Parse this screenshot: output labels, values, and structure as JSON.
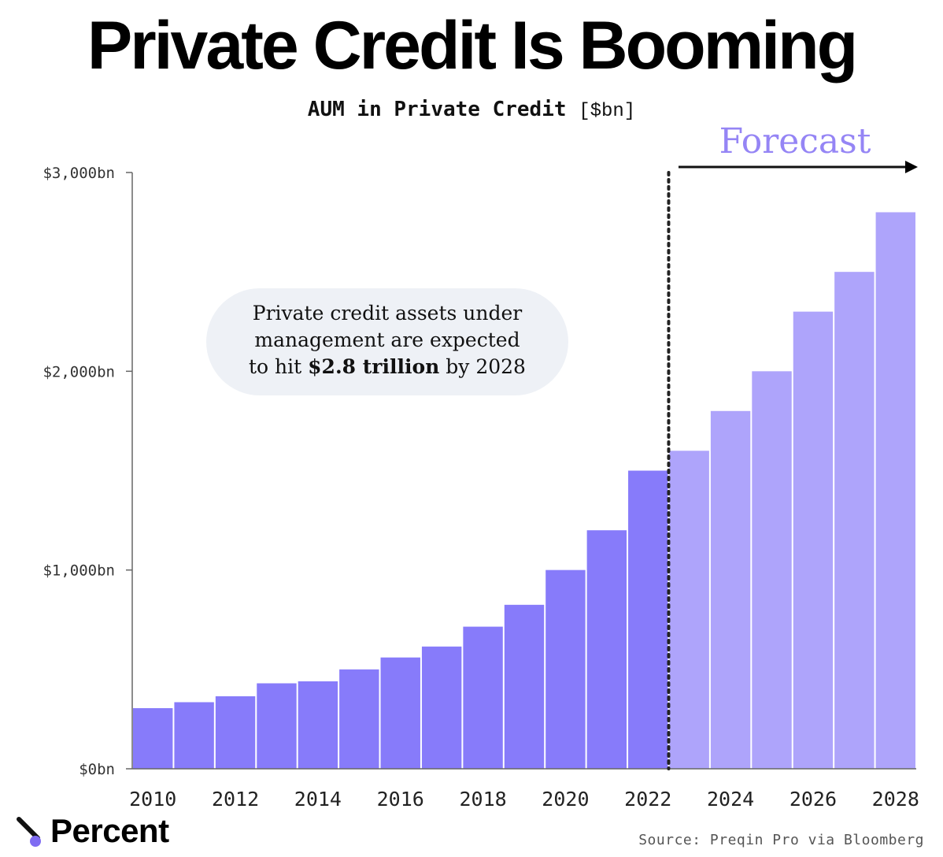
{
  "title": "Private Credit Is Booming",
  "subtitle": {
    "main": "AUM in Private Credit",
    "unit": "[$bn]"
  },
  "annotation": {
    "line1": "Private credit assets under",
    "line2": "management are expected",
    "line3_prefix": "to hit ",
    "line3_bold": "$2.8 trillion",
    "line3_suffix": " by 2028"
  },
  "forecast_label": "Forecast",
  "source": "Source: Preqin Pro via Bloomberg",
  "brand": {
    "name": "Percent",
    "icon": "percent-logo-icon"
  },
  "colors": {
    "historical": "#877BFA",
    "forecast": "#AEA4FB",
    "forecast_text": "#9585F5",
    "annotation_bg": "#EEF1F6"
  },
  "chart_data": {
    "type": "bar",
    "title": "AUM in Private Credit",
    "unit": "$bn",
    "categories": [
      "2010",
      "2011",
      "2012",
      "2013",
      "2014",
      "2015",
      "2016",
      "2017",
      "2018",
      "2019",
      "2020",
      "2021",
      "2022",
      "2023",
      "2024",
      "2025",
      "2026",
      "2027",
      "2028"
    ],
    "series": [
      {
        "name": "",
        "values": [
          305,
          335,
          365,
          430,
          440,
          500,
          560,
          615,
          715,
          825,
          1000,
          1200,
          1500,
          1600,
          1800,
          2000,
          2300,
          2500,
          2800
        ]
      }
    ],
    "forecast_start": "2023",
    "y_ticks": [
      0,
      1000,
      2000,
      3000
    ],
    "y_tick_labels": [
      "$0bn",
      "$1,000bn",
      "$2,000bn",
      "$3,000bn"
    ],
    "x_tick_labels": [
      "2010",
      "2012",
      "2014",
      "2016",
      "2018",
      "2020",
      "2022",
      "2024",
      "2026",
      "2028"
    ],
    "ylim": [
      0,
      3000
    ],
    "xlabel": "",
    "ylabel": "",
    "grid": false,
    "legend": "none"
  }
}
